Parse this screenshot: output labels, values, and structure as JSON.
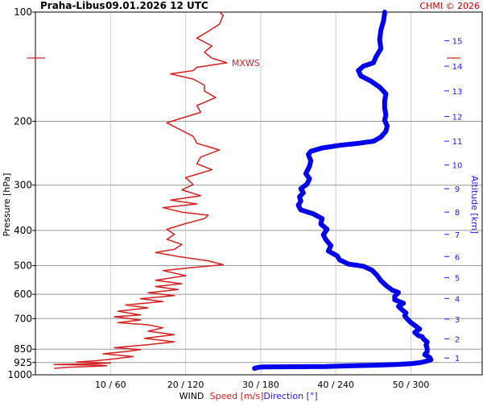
{
  "header": {
    "station": "Praha-Libus",
    "datetime": "09.01.2026 12 UTC",
    "copyright": "CHMI © 2026"
  },
  "chart_data": {
    "type": "line",
    "title": "Praha-Libus 09.01.2026 12 UTC",
    "ylabel": "Pressure [hPa]",
    "ylabel_right": "Altitude [km]",
    "xlabel": "WIND",
    "legend": {
      "speed": "Speed [m/s]",
      "direction": "Direction [°]"
    },
    "x_ticks": [
      "10 / 60",
      "20 / 120",
      "30 / 180",
      "40 / 240",
      "50 / 300"
    ],
    "x_tick_values": [
      10,
      20,
      30,
      40,
      50
    ],
    "xlim_speed": [
      0,
      60
    ],
    "xlim_direction": [
      0,
      360
    ],
    "y_scale": "log",
    "ylim": [
      1000,
      100
    ],
    "y_ticks": [
      100,
      200,
      300,
      400,
      500,
      600,
      700,
      850,
      925,
      1000
    ],
    "alt_ticks_km": [
      1,
      2,
      3,
      4,
      5,
      6,
      7,
      8,
      9,
      10,
      11,
      12,
      13,
      14,
      15
    ],
    "alt_tick_pressures": [
      899,
      796,
      702,
      616,
      540,
      472,
      410,
      356,
      307,
      264,
      227,
      194,
      165,
      141,
      120
    ],
    "annotation": {
      "text": "MXWS",
      "speed": 25.5,
      "pressure": 138
    },
    "series": [
      {
        "name": "Speed [m/s]",
        "color": "#d42020",
        "points": [
          [
            2.5,
            960
          ],
          [
            4.5,
            953
          ],
          [
            9.5,
            945
          ],
          [
            8.5,
            941
          ],
          [
            2.5,
            937
          ],
          [
            8,
            932
          ],
          [
            10,
            928
          ],
          [
            5.5,
            922
          ],
          [
            8,
            915
          ],
          [
            10.5,
            904
          ],
          [
            13,
            891
          ],
          [
            9,
            875
          ],
          [
            12,
            863
          ],
          [
            14,
            852
          ],
          [
            10.5,
            842
          ],
          [
            15,
            826
          ],
          [
            18.5,
            811
          ],
          [
            14.5,
            793
          ],
          [
            18.5,
            775
          ],
          [
            15,
            758
          ],
          [
            17,
            742
          ],
          [
            15,
            728
          ],
          [
            11,
            718
          ],
          [
            14,
            706
          ],
          [
            10.5,
            692
          ],
          [
            14,
            684
          ],
          [
            11,
            668
          ],
          [
            15,
            654
          ],
          [
            12,
            642
          ],
          [
            17,
            628
          ],
          [
            14,
            617
          ],
          [
            18.5,
            605
          ],
          [
            15,
            594
          ],
          [
            19,
            582
          ],
          [
            16,
            571
          ],
          [
            19.5,
            561
          ],
          [
            16,
            549
          ],
          [
            20,
            533
          ],
          [
            17,
            516
          ],
          [
            21,
            506
          ],
          [
            25,
            497
          ],
          [
            23,
            485
          ],
          [
            19,
            472
          ],
          [
            16,
            460
          ],
          [
            18.5,
            451
          ],
          [
            19.5,
            437
          ],
          [
            17.5,
            423
          ],
          [
            18.5,
            410
          ],
          [
            17.5,
            397
          ],
          [
            20,
            383
          ],
          [
            22.5,
            371
          ],
          [
            23,
            363
          ],
          [
            19.5,
            356
          ],
          [
            17,
            346
          ],
          [
            21.5,
            338
          ],
          [
            18,
            330
          ],
          [
            22,
            321
          ],
          [
            19.5,
            309
          ],
          [
            21,
            299
          ],
          [
            20,
            286
          ],
          [
            23.5,
            272
          ],
          [
            21.5,
            262
          ],
          [
            22,
            251
          ],
          [
            24.5,
            240
          ],
          [
            21.5,
            230
          ],
          [
            21,
            220
          ],
          [
            19.5,
            212
          ],
          [
            17.5,
            202
          ],
          [
            19.5,
            196
          ],
          [
            22,
            189
          ],
          [
            21.5,
            181
          ],
          [
            24,
            172
          ],
          [
            22.5,
            165
          ],
          [
            22.5,
            159
          ],
          [
            21,
            153
          ],
          [
            18,
            148
          ],
          [
            21,
            145
          ],
          [
            21.5,
            142
          ],
          [
            25.5,
            138
          ],
          [
            23.5,
            134
          ],
          [
            22.5,
            129
          ],
          [
            23.5,
            124
          ],
          [
            21.5,
            118
          ],
          [
            23,
            113
          ],
          [
            24.5,
            108
          ],
          [
            25,
            102
          ],
          [
            24.5,
            100
          ]
        ]
      },
      {
        "name": "Direction [°]",
        "color": "#0000ee",
        "points": [
          [
            175,
            960
          ],
          [
            178,
            954
          ],
          [
            182,
            951
          ],
          [
            209,
            950
          ],
          [
            232,
            949
          ],
          [
            250,
            945
          ],
          [
            271,
            941
          ],
          [
            288,
            937
          ],
          [
            300,
            932
          ],
          [
            307,
            926
          ],
          [
            312,
            918
          ],
          [
            316,
            909
          ],
          [
            315,
            896
          ],
          [
            311,
            880
          ],
          [
            313,
            863
          ],
          [
            313,
            846
          ],
          [
            312,
            829
          ],
          [
            313,
            812
          ],
          [
            310,
            796
          ],
          [
            309,
            786
          ],
          [
            306,
            780
          ],
          [
            303,
            764
          ],
          [
            307,
            748
          ],
          [
            304,
            735
          ],
          [
            300,
            718
          ],
          [
            297,
            701
          ],
          [
            295,
            687
          ],
          [
            296,
            675
          ],
          [
            293,
            662
          ],
          [
            290,
            648
          ],
          [
            294,
            635
          ],
          [
            287,
            621
          ],
          [
            287,
            608
          ],
          [
            290,
            593
          ],
          [
            285,
            584
          ],
          [
            280,
            567
          ],
          [
            276,
            550
          ],
          [
            273,
            532
          ],
          [
            269,
            515
          ],
          [
            262,
            502
          ],
          [
            250,
            495
          ],
          [
            243,
            482
          ],
          [
            241,
            470
          ],
          [
            234,
            456
          ],
          [
            236,
            440
          ],
          [
            232,
            424
          ],
          [
            230,
            411
          ],
          [
            233,
            397
          ],
          [
            228,
            384
          ],
          [
            229,
            371
          ],
          [
            222,
            360
          ],
          [
            212,
            351
          ],
          [
            210,
            341
          ],
          [
            212,
            332
          ],
          [
            211,
            323
          ],
          [
            214,
            315
          ],
          [
            212,
            307
          ],
          [
            217,
            298
          ],
          [
            219,
            288
          ],
          [
            216,
            279
          ],
          [
            219,
            266
          ],
          [
            220,
            257
          ],
          [
            218,
            247
          ],
          [
            220,
            242
          ],
          [
            229,
            237
          ],
          [
            243,
            233
          ],
          [
            258,
            230
          ],
          [
            270,
            227
          ],
          [
            276,
            221
          ],
          [
            280,
            213
          ],
          [
            281,
            206
          ],
          [
            279,
            199
          ],
          [
            280,
            192
          ],
          [
            279,
            184
          ],
          [
            279,
            176
          ],
          [
            280,
            168
          ],
          [
            275,
            161
          ],
          [
            268,
            155
          ],
          [
            260,
            150
          ],
          [
            258,
            145
          ],
          [
            262,
            141
          ],
          [
            270,
            138
          ],
          [
            272,
            133
          ],
          [
            276,
            126
          ],
          [
            275,
            119
          ],
          [
            276,
            112
          ],
          [
            278,
            106
          ],
          [
            279,
            101
          ],
          [
            279,
            100
          ]
        ]
      }
    ]
  }
}
